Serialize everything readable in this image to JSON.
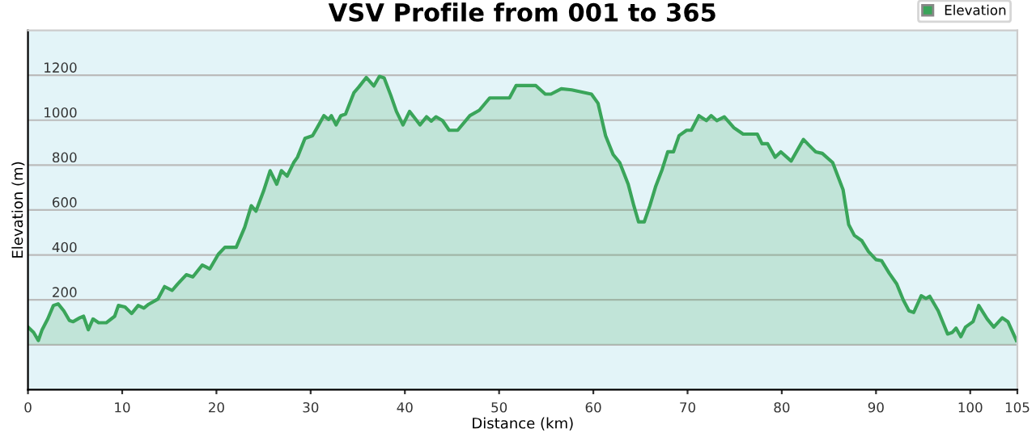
{
  "chart_data": {
    "type": "area",
    "title": "VSV Profile from 001 to 365",
    "xlabel": "Distance (km)",
    "ylabel": "Elevation (m)",
    "xlim": [
      0,
      105
    ],
    "xticks": [
      0,
      10,
      20,
      30,
      40,
      50,
      60,
      70,
      80,
      90,
      100,
      105
    ],
    "ylim": [
      -200,
      1400
    ],
    "yticks": [
      {
        "value": 0,
        "label": null
      },
      200,
      400,
      600,
      800,
      1000,
      1200
    ],
    "grid": "y",
    "legend": "top right",
    "marker": "none",
    "line_style": "solid",
    "series": [
      {
        "name": "Elevation",
        "color": "#3aa55a",
        "x": [
          0,
          0.6,
          1.1,
          1.5,
          2.1,
          2.7,
          3.2,
          3.8,
          4.4,
          4.8,
          5.5,
          5.9,
          6.4,
          6.9,
          7.5,
          8.3,
          9.2,
          9.6,
          10.3,
          11,
          11.7,
          12.3,
          12.8,
          13.8,
          14.5,
          15.3,
          15.9,
          16.8,
          17.5,
          18.5,
          19.3,
          20.2,
          20.9,
          22.1,
          23,
          23.7,
          24.2,
          25,
          25.7,
          26.4,
          26.9,
          27.5,
          28.2,
          28.6,
          29.4,
          30.2,
          30.7,
          31.4,
          31.9,
          32.2,
          32.7,
          33.2,
          33.7,
          34.6,
          35.1,
          35.9,
          36.7,
          37.3,
          37.8,
          38.5,
          39.1,
          39.8,
          40.5,
          41.6,
          42.3,
          42.8,
          43.3,
          44,
          44.7,
          45.6,
          46.9,
          47.9,
          49,
          51.1,
          51.8,
          53.9,
          54.9,
          55.5,
          56.6,
          57.7,
          59.8,
          60.5,
          61.3,
          62.1,
          62.8,
          63.7,
          64.3,
          64.8,
          65.4,
          66,
          66.6,
          67.3,
          67.9,
          68.5,
          69.1,
          69.9,
          70.4,
          71.2,
          72,
          72.5,
          73.1,
          73.9,
          74.9,
          75.9,
          77.4,
          77.9,
          78.5,
          79.3,
          79.9,
          81,
          82.3,
          82.9,
          83.6,
          84.3,
          85.4,
          86.5,
          87.1,
          87.7,
          88.5,
          89.2,
          90,
          90.6,
          91.4,
          92.2,
          92.9,
          93.5,
          94,
          94.8,
          95.3,
          95.7,
          96.6,
          97.6,
          98.1,
          98.5,
          99,
          99.5,
          100.3,
          100.9,
          101.8,
          102.5,
          103.4,
          104,
          104.9
        ],
        "values": [
          79,
          55,
          19,
          67,
          115,
          175,
          182,
          151,
          108,
          103,
          120,
          127,
          67,
          115,
          98,
          98,
          127,
          175,
          168,
          139,
          175,
          163,
          180,
          204,
          259,
          242,
          271,
          312,
          302,
          355,
          338,
          403,
          434,
          434,
          523,
          619,
          595,
          684,
          775,
          715,
          775,
          751,
          811,
          835,
          919,
          931,
          967,
          1020,
          1003,
          1020,
          979,
          1020,
          1027,
          1123,
          1147,
          1190,
          1152,
          1195,
          1188,
          1111,
          1039,
          979,
          1039,
          979,
          1015,
          996,
          1015,
          998,
          955,
          955,
          1020,
          1044,
          1099,
          1099,
          1154,
          1154,
          1116,
          1116,
          1140,
          1135,
          1116,
          1075,
          931,
          847,
          811,
          715,
          619,
          547,
          547,
          619,
          703,
          780,
          859,
          859,
          931,
          955,
          955,
          1020,
          998,
          1020,
          998,
          1015,
          967,
          938,
          938,
          895,
          895,
          835,
          859,
          818,
          914,
          888,
          859,
          852,
          811,
          691,
          535,
          487,
          463,
          415,
          379,
          374,
          319,
          271,
          199,
          151,
          144,
          218,
          206,
          216,
          151,
          48,
          55,
          74,
          36,
          79,
          103,
          175,
          115,
          79,
          120,
          103,
          19
        ]
      }
    ]
  }
}
